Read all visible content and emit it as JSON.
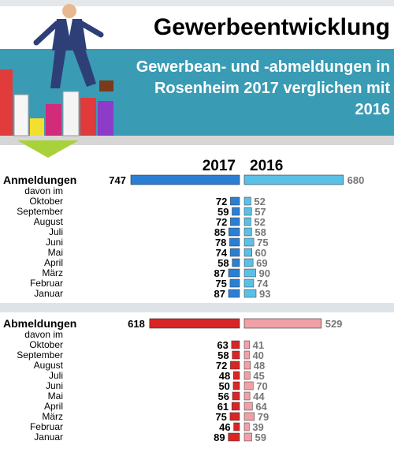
{
  "title": "Gewerbeentwicklung",
  "subtitle_lines": [
    "Gewerbean- und -abmeldungen in",
    "Rosenheim 2017 verglichen mit",
    "2016"
  ],
  "colors": {
    "teal": "#3a9bb4",
    "bar_2017_reg": "#2a7fd4",
    "bar_2016_reg": "#5bc0e6",
    "bar_2017_dereg": "#d92525",
    "bar_2016_dereg": "#f0a0a6"
  },
  "chart_data": {
    "type": "bar",
    "series_names": [
      "2017",
      "2016"
    ],
    "sub_label": "davon im",
    "groups": [
      {
        "label": "Anmeldungen",
        "total": {
          "v2017": 747,
          "v2016": 680
        },
        "months": [
          "Oktober",
          "September",
          "August",
          "Juli",
          "Juni",
          "Mai",
          "April",
          "März",
          "Februar",
          "Januar"
        ],
        "v2017": [
          72,
          59,
          72,
          85,
          78,
          74,
          58,
          87,
          75,
          87
        ],
        "v2016": [
          52,
          57,
          52,
          58,
          75,
          60,
          69,
          90,
          74,
          93
        ]
      },
      {
        "label": "Abmeldungen",
        "total": {
          "v2017": 618,
          "v2016": 529
        },
        "months": [
          "Oktober",
          "September",
          "August",
          "Juli",
          "Juni",
          "Mai",
          "April",
          "März",
          "Februar",
          "Januar"
        ],
        "v2017": [
          63,
          58,
          72,
          48,
          50,
          56,
          61,
          75,
          46,
          89
        ],
        "v2016": [
          41,
          40,
          48,
          45,
          70,
          44,
          64,
          79,
          39,
          59
        ]
      }
    ]
  }
}
